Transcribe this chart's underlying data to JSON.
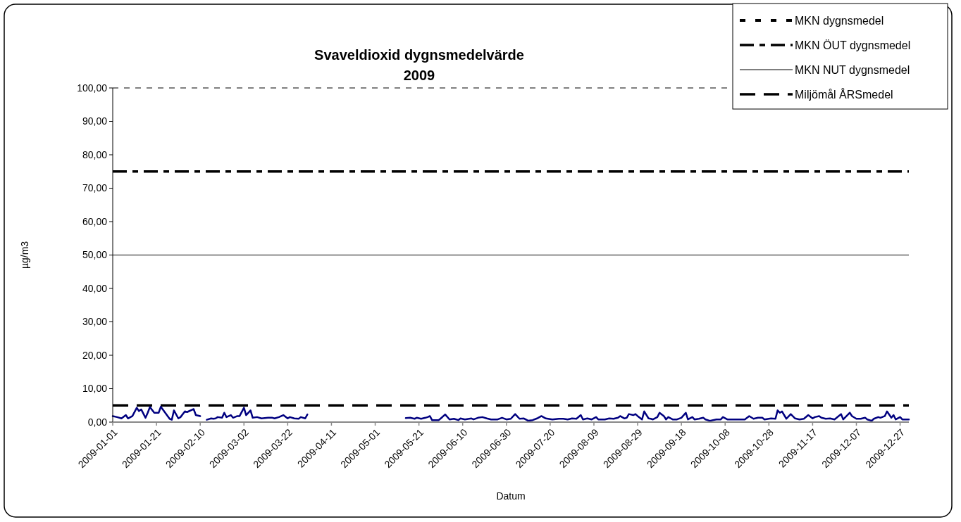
{
  "chart_data": {
    "type": "line",
    "title": "Svaveldioxid dygnsmedelvärde",
    "subtitle": "2009",
    "xlabel": "Datum",
    "ylabel": "µg/m3",
    "xlim": [
      "2009-01-01",
      "2009-12-31"
    ],
    "xticks": [
      "2009-01-01",
      "2009-01-21",
      "2009-02-10",
      "2009-03-02",
      "2009-03-22",
      "2009-04-11",
      "2009-05-01",
      "2009-05-21",
      "2009-06-10",
      "2009-06-30",
      "2009-07-20",
      "2009-08-09",
      "2009-08-29",
      "2009-09-18",
      "2009-10-08",
      "2009-10-28",
      "2009-11-17",
      "2009-12-07",
      "2009-12-27"
    ],
    "ylim": [
      0,
      100
    ],
    "yticks": [
      {
        "value": 0,
        "label": "0,00"
      },
      {
        "value": 10,
        "label": "10,00"
      },
      {
        "value": 20,
        "label": "20,00"
      },
      {
        "value": 30,
        "label": "30,00"
      },
      {
        "value": 40,
        "label": "40,00"
      },
      {
        "value": 50,
        "label": "50,00"
      },
      {
        "value": 60,
        "label": "60,00"
      },
      {
        "value": 70,
        "label": "70,00"
      },
      {
        "value": 80,
        "label": "80,00"
      },
      {
        "value": 90,
        "label": "90,00"
      },
      {
        "value": 100,
        "label": "100,00"
      }
    ],
    "grid": false,
    "legend": "top right",
    "marker": "none",
    "ref_lines": [
      {
        "axis": "y",
        "value": 100,
        "label": "MKN dygnsmedel",
        "color": "#000000",
        "line_style": "dashed"
      },
      {
        "axis": "y",
        "value": 75,
        "label": "MKN ÖUT dygnsmedel",
        "color": "#000000",
        "line_style": "dashdot"
      },
      {
        "axis": "y",
        "value": 50,
        "label": "MKN NUT dygnsmedel",
        "color": "#000000",
        "line_style": "solid"
      },
      {
        "axis": "y",
        "value": 5,
        "label": "Miljömål ÅRSmedel",
        "color": "#000000",
        "line_style": "longdash"
      }
    ],
    "series": [
      {
        "color": "#000080",
        "line_style": "solid",
        "x": [
          "2009-01-01",
          "2009-01-03",
          "2009-01-05",
          "2009-01-07",
          "2009-01-08",
          "2009-01-10",
          "2009-01-12",
          "2009-01-13",
          "2009-01-14",
          "2009-01-16",
          "2009-01-17",
          "2009-01-18",
          "2009-01-20",
          "2009-01-22",
          "2009-01-23",
          "2009-01-25",
          "2009-01-27",
          "2009-01-28",
          "2009-01-29",
          "2009-01-31",
          "2009-02-01",
          "2009-02-03",
          "2009-02-04",
          "2009-02-07",
          "2009-02-08",
          "2009-02-10",
          "2009-02-11",
          "2009-02-13",
          "2009-02-15",
          "2009-02-16",
          "2009-02-17",
          "2009-02-18",
          "2009-02-20",
          "2009-02-21",
          "2009-02-22",
          "2009-02-24",
          "2009-02-25",
          "2009-02-27",
          "2009-02-28",
          "2009-03-02",
          "2009-03-03",
          "2009-03-05",
          "2009-03-06",
          "2009-03-08",
          "2009-03-10",
          "2009-03-13",
          "2009-03-15",
          "2009-03-16",
          "2009-03-18",
          "2009-03-20",
          "2009-03-22",
          "2009-03-23",
          "2009-03-25",
          "2009-03-27",
          "2009-03-28",
          "2009-03-30",
          "2009-03-31",
          "2009-04-01",
          "2009-05-15",
          "2009-05-17",
          "2009-05-19",
          "2009-05-20",
          "2009-05-22",
          "2009-05-24",
          "2009-05-25",
          "2009-05-26",
          "2009-05-27",
          "2009-05-30",
          "2009-05-31",
          "2009-06-02",
          "2009-06-04",
          "2009-06-06",
          "2009-06-08",
          "2009-06-09",
          "2009-06-11",
          "2009-06-14",
          "2009-06-15",
          "2009-06-17",
          "2009-06-19",
          "2009-06-21",
          "2009-06-23",
          "2009-06-26",
          "2009-06-28",
          "2009-06-30",
          "2009-07-02",
          "2009-07-04",
          "2009-07-06",
          "2009-07-08",
          "2009-07-10",
          "2009-07-12",
          "2009-07-14",
          "2009-07-16",
          "2009-07-18",
          "2009-07-19",
          "2009-07-21",
          "2009-07-24",
          "2009-07-26",
          "2009-07-28",
          "2009-07-30",
          "2009-08-01",
          "2009-08-03",
          "2009-08-04",
          "2009-08-06",
          "2009-08-08",
          "2009-08-10",
          "2009-08-11",
          "2009-08-14",
          "2009-08-16",
          "2009-08-18",
          "2009-08-20",
          "2009-08-21",
          "2009-08-23",
          "2009-08-24",
          "2009-08-25",
          "2009-08-27",
          "2009-08-28",
          "2009-08-29",
          "2009-08-31",
          "2009-09-01",
          "2009-09-03",
          "2009-09-04",
          "2009-09-05",
          "2009-09-07",
          "2009-09-08",
          "2009-09-10",
          "2009-09-11",
          "2009-09-12",
          "2009-09-14",
          "2009-09-16",
          "2009-09-18",
          "2009-09-20",
          "2009-09-21",
          "2009-09-23",
          "2009-09-24",
          "2009-09-26",
          "2009-09-28",
          "2009-09-29",
          "2009-10-01",
          "2009-10-04",
          "2009-10-06",
          "2009-10-07",
          "2009-10-09",
          "2009-10-11",
          "2009-10-14",
          "2009-10-17",
          "2009-10-19",
          "2009-10-21",
          "2009-10-23",
          "2009-10-25",
          "2009-10-26",
          "2009-10-29",
          "2009-10-31",
          "2009-11-01",
          "2009-11-02",
          "2009-11-03",
          "2009-11-05",
          "2009-11-07",
          "2009-11-09",
          "2009-11-11",
          "2009-11-13",
          "2009-11-15",
          "2009-11-17",
          "2009-11-18",
          "2009-11-20",
          "2009-11-21",
          "2009-11-23",
          "2009-11-25",
          "2009-11-27",
          "2009-11-28",
          "2009-11-30",
          "2009-12-01",
          "2009-12-04",
          "2009-12-05",
          "2009-12-07",
          "2009-12-09",
          "2009-12-11",
          "2009-12-12",
          "2009-12-14",
          "2009-12-15",
          "2009-12-17",
          "2009-12-18",
          "2009-12-20",
          "2009-12-21",
          "2009-12-23",
          "2009-12-24",
          "2009-12-25",
          "2009-12-27",
          "2009-12-28",
          "2009-12-31"
        ],
        "values": [
          1.8,
          1.5,
          1.1,
          2.1,
          1.1,
          1.8,
          4.3,
          3.3,
          3.8,
          1.3,
          2.8,
          4.5,
          2.8,
          2.8,
          4.6,
          2.8,
          1.0,
          0.7,
          3.5,
          1.1,
          1.5,
          3.2,
          3.0,
          3.9,
          2.1,
          1.8,
          null,
          0.7,
          1.1,
          1.0,
          1.1,
          1.5,
          1.3,
          2.8,
          1.5,
          2.1,
          1.3,
          1.8,
          1.8,
          4.3,
          2.1,
          3.5,
          1.3,
          1.5,
          1.1,
          1.3,
          1.3,
          1.1,
          1.5,
          2.1,
          1.1,
          1.5,
          1.1,
          1.0,
          1.5,
          1.1,
          2.3,
          null,
          1.2,
          1.3,
          1.0,
          1.3,
          1.0,
          1.3,
          1.5,
          1.8,
          0.6,
          0.6,
          1.1,
          2.3,
          0.8,
          1.0,
          0.6,
          1.1,
          0.8,
          1.1,
          0.8,
          1.3,
          1.5,
          1.1,
          0.8,
          0.8,
          1.3,
          0.8,
          1.0,
          2.4,
          1.0,
          1.1,
          0.4,
          0.6,
          1.1,
          1.8,
          1.1,
          1.0,
          0.8,
          1.0,
          1.0,
          0.8,
          1.1,
          1.0,
          2.1,
          0.8,
          1.1,
          0.8,
          1.5,
          0.8,
          0.8,
          1.1,
          1.0,
          1.3,
          1.8,
          1.1,
          1.3,
          2.4,
          2.1,
          2.4,
          1.8,
          0.8,
          3.2,
          1.1,
          1.0,
          0.8,
          1.5,
          2.8,
          1.8,
          0.8,
          1.5,
          0.8,
          0.8,
          1.3,
          2.8,
          0.8,
          1.5,
          0.8,
          1.0,
          1.3,
          0.8,
          0.4,
          0.8,
          0.8,
          1.5,
          0.8,
          0.8,
          0.8,
          0.8,
          1.8,
          1.0,
          1.3,
          1.3,
          0.8,
          1.1,
          1.0,
          3.5,
          2.8,
          3.2,
          1.0,
          2.4,
          1.1,
          0.8,
          1.0,
          2.1,
          1.1,
          1.5,
          1.8,
          1.3,
          1.0,
          1.1,
          0.8,
          1.3,
          2.4,
          0.8,
          2.8,
          1.8,
          1.0,
          1.0,
          1.3,
          0.8,
          0.4,
          1.0,
          1.5,
          1.3,
          1.8,
          3.2,
          1.3,
          2.1,
          0.8,
          1.5,
          0.8,
          0.8
        ]
      }
    ]
  }
}
